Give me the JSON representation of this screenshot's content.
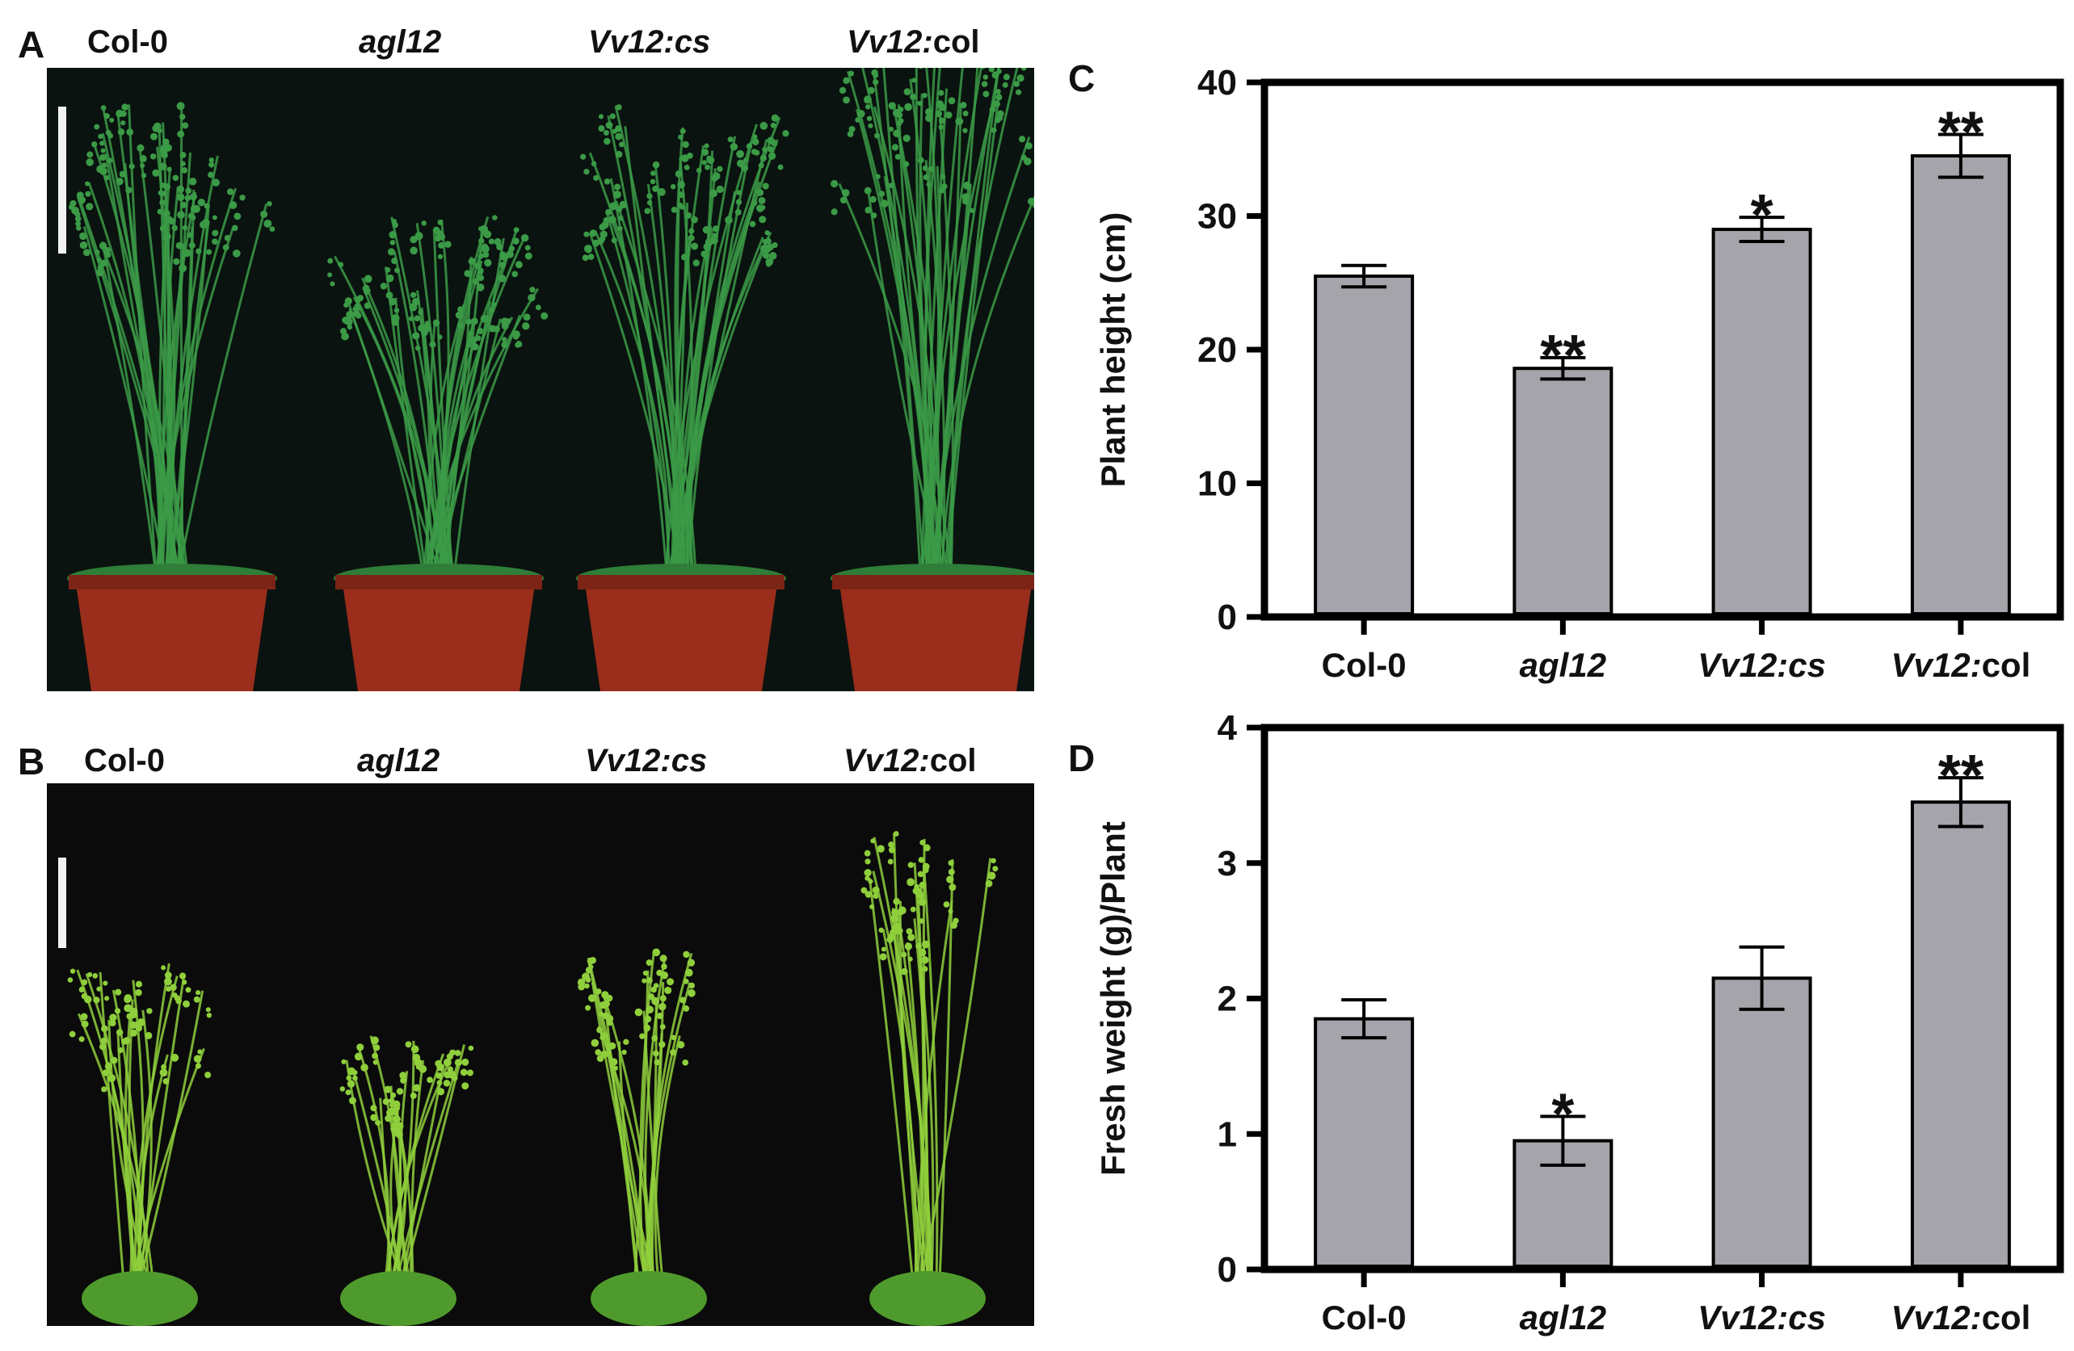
{
  "panels": {
    "a": {
      "letter": "A",
      "labels": [
        {
          "italic": "",
          "normal": "Col-0"
        },
        {
          "italic": "agl12",
          "normal": ""
        },
        {
          "italic": "Vv12:cs",
          "normal": ""
        },
        {
          "italic": "Vv12:",
          "normal": "col"
        }
      ]
    },
    "b": {
      "letter": "B",
      "labels": [
        {
          "italic": "",
          "normal": "Col-0"
        },
        {
          "italic": "agl12",
          "normal": ""
        },
        {
          "italic": "Vv12:cs",
          "normal": ""
        },
        {
          "italic": "Vv12:",
          "normal": "col"
        }
      ]
    },
    "c": {
      "letter": "C"
    },
    "d": {
      "letter": "D"
    }
  },
  "colors": {
    "bar_fill": "#a5a4aa",
    "axis": "#000000",
    "photo_a_bg": "#0a130f",
    "photo_b_bg": "#0b0b0b",
    "plant_a": "#3b9a46",
    "plant_b": "#8fcf3c",
    "pot": "#9a2d1c"
  },
  "chart_data": [
    {
      "panel": "C",
      "type": "bar",
      "categories": [
        {
          "italic": "",
          "normal": "Col-0"
        },
        {
          "italic": "agl12",
          "normal": ""
        },
        {
          "italic": "Vv12:cs",
          "normal": ""
        },
        {
          "italic": "Vv12:",
          "normal": "col"
        }
      ],
      "values": [
        25.5,
        18.6,
        29.0,
        34.5
      ],
      "errors": [
        0.8,
        0.8,
        0.9,
        1.6
      ],
      "significance": [
        "",
        "**",
        "*",
        "**"
      ],
      "ylabel": "Plant height (cm)",
      "ylim": [
        0,
        40
      ],
      "yticks": [
        "0",
        "10",
        "20",
        "30",
        "40"
      ],
      "ytick_values": [
        0,
        10,
        20,
        30,
        40
      ]
    },
    {
      "panel": "D",
      "type": "bar",
      "categories": [
        {
          "italic": "",
          "normal": "Col-0"
        },
        {
          "italic": "agl12",
          "normal": ""
        },
        {
          "italic": "Vv12:cs",
          "normal": ""
        },
        {
          "italic": "Vv12:",
          "normal": "col"
        }
      ],
      "values": [
        1.85,
        0.95,
        2.15,
        3.45
      ],
      "errors": [
        0.14,
        0.18,
        0.23,
        0.18
      ],
      "significance": [
        "",
        "*",
        "",
        "**"
      ],
      "ylabel": "Fresh weight (g)/Plant",
      "ylim": [
        0,
        4
      ],
      "yticks": [
        "0",
        "1",
        "2",
        "3",
        "4"
      ],
      "ytick_values": [
        0,
        1,
        2,
        3,
        4
      ]
    }
  ]
}
